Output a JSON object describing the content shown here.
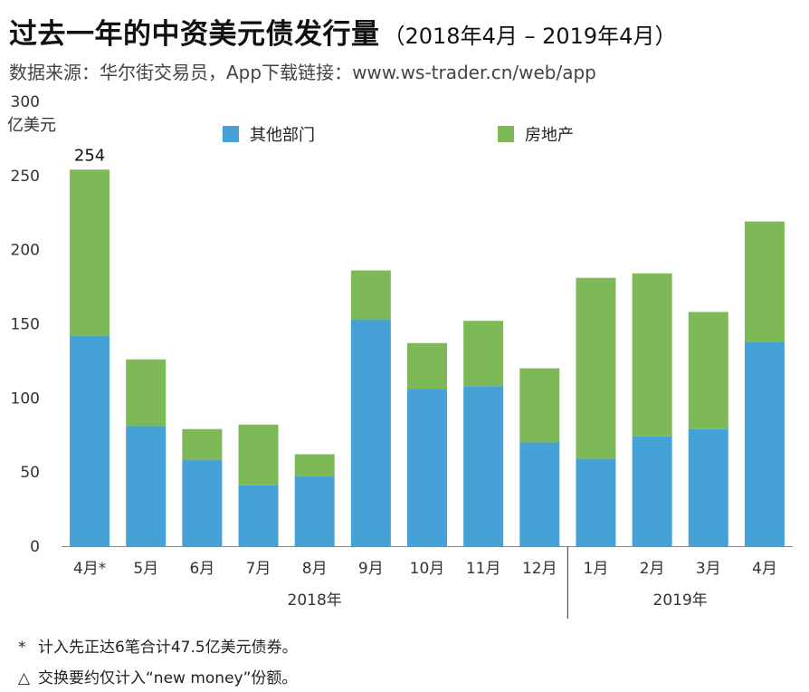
{
  "header": {
    "title": "过去一年的中资美元债发行量",
    "title_suffix": "（2018年4月 – 2019年4月）",
    "source": "数据来源：华尔街交易员，App下载链接：www.ws-trader.cn/web/app"
  },
  "notes": [
    {
      "mark": "*",
      "text": "计入先正达6笔合计47.5亿美元债券。"
    },
    {
      "mark": "△",
      "text": "交换要约仅计入“new money”份额。"
    }
  ],
  "colors": {
    "other": "#45a1d6",
    "property": "#7db957",
    "axis": "#888888",
    "tick_text": "#333333"
  },
  "chart_data": {
    "type": "bar",
    "stacked": true,
    "ylabel": "亿美元",
    "ylim": [
      0,
      300
    ],
    "yticks": [
      0,
      50,
      100,
      150,
      200,
      250,
      300
    ],
    "categories": [
      "4月*",
      "5月",
      "6月",
      "7月",
      "8月",
      "9月",
      "10月",
      "11月",
      "12月",
      "1月",
      "2月",
      "3月",
      "4月"
    ],
    "year_groups": [
      {
        "label": "2018年",
        "start": 0,
        "end": 8
      },
      {
        "label": "2019年",
        "start": 9,
        "end": 12
      }
    ],
    "series": [
      {
        "name": "其他部门",
        "color": "#45a1d6",
        "values": [
          142,
          81,
          58,
          41,
          47,
          153,
          106,
          108,
          70,
          59,
          74,
          79,
          138
        ]
      },
      {
        "name": "房地产",
        "color": "#7db957",
        "values": [
          112,
          45,
          21,
          41,
          15,
          33,
          31,
          44,
          50,
          122,
          110,
          79,
          81
        ]
      }
    ],
    "annotations": [
      {
        "category_index": 0,
        "text": "254"
      }
    ],
    "legend_position": "top",
    "grid": false
  }
}
